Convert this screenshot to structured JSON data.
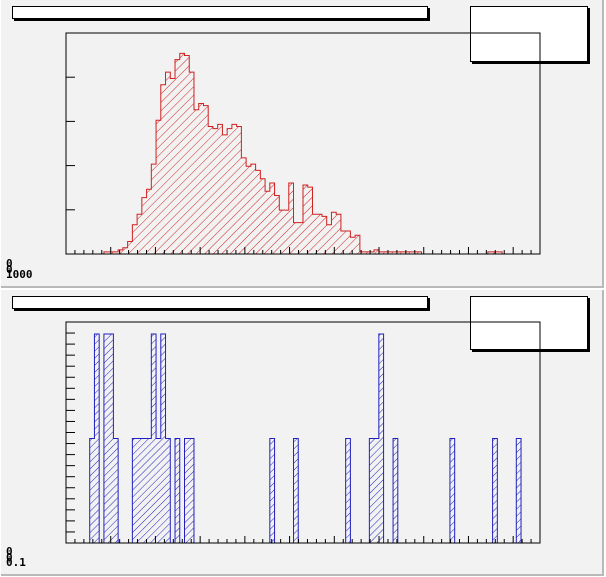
{
  "pads": [
    {
      "title": "",
      "stats": ""
    },
    {
      "title": "",
      "stats": ""
    }
  ],
  "chart_data": [
    {
      "type": "bar",
      "color": "#d02020",
      "fill_pattern": "diagonal hatch",
      "grid": false,
      "ylim": [
        0,
        100
      ],
      "values": [
        0,
        0,
        0,
        0,
        0,
        0,
        0,
        0,
        1,
        1,
        1,
        2,
        3,
        6,
        14,
        19,
        27,
        31,
        43,
        64,
        81,
        87,
        84,
        93,
        96,
        95,
        87,
        69,
        72,
        71,
        61,
        60,
        62,
        57,
        60,
        62,
        61,
        46,
        42,
        43,
        40,
        36,
        30,
        34,
        28,
        21,
        21,
        34,
        15,
        15,
        33,
        32,
        19,
        19,
        18,
        14,
        20,
        19,
        11,
        11,
        8,
        9,
        1,
        1,
        1,
        2,
        1,
        1,
        1,
        1,
        1,
        1,
        1,
        1,
        1,
        0,
        0,
        0,
        0,
        0,
        0,
        0,
        0,
        0,
        0,
        0,
        0,
        0,
        0,
        1,
        1,
        1,
        0,
        0,
        0,
        0,
        0,
        0,
        0,
        0
      ],
      "tick_labels": [
        "0",
        "0",
        "1000"
      ]
    },
    {
      "type": "bar",
      "color": "#2020c0",
      "fill_pattern": "diagonal hatch",
      "grid": false,
      "ylim": [
        0,
        2
      ],
      "values": [
        0,
        0,
        0,
        0,
        0,
        1,
        2,
        0,
        2,
        2,
        1,
        0,
        0,
        0,
        1,
        1,
        1,
        1,
        2,
        1,
        2,
        1,
        0,
        1,
        0,
        1,
        1,
        0,
        0,
        0,
        0,
        0,
        0,
        0,
        0,
        0,
        0,
        0,
        0,
        0,
        0,
        0,
        0,
        1,
        0,
        0,
        0,
        0,
        1,
        0,
        0,
        0,
        0,
        0,
        0,
        0,
        0,
        0,
        0,
        1,
        0,
        0,
        0,
        0,
        1,
        1,
        2,
        0,
        0,
        1,
        0,
        0,
        0,
        0,
        0,
        0,
        0,
        0,
        0,
        0,
        0,
        1,
        0,
        0,
        0,
        0,
        0,
        0,
        0,
        0,
        1,
        0,
        0,
        0,
        0,
        1,
        0,
        0,
        0,
        0
      ],
      "tick_labels": [
        "0",
        "0",
        "0.1"
      ]
    }
  ]
}
